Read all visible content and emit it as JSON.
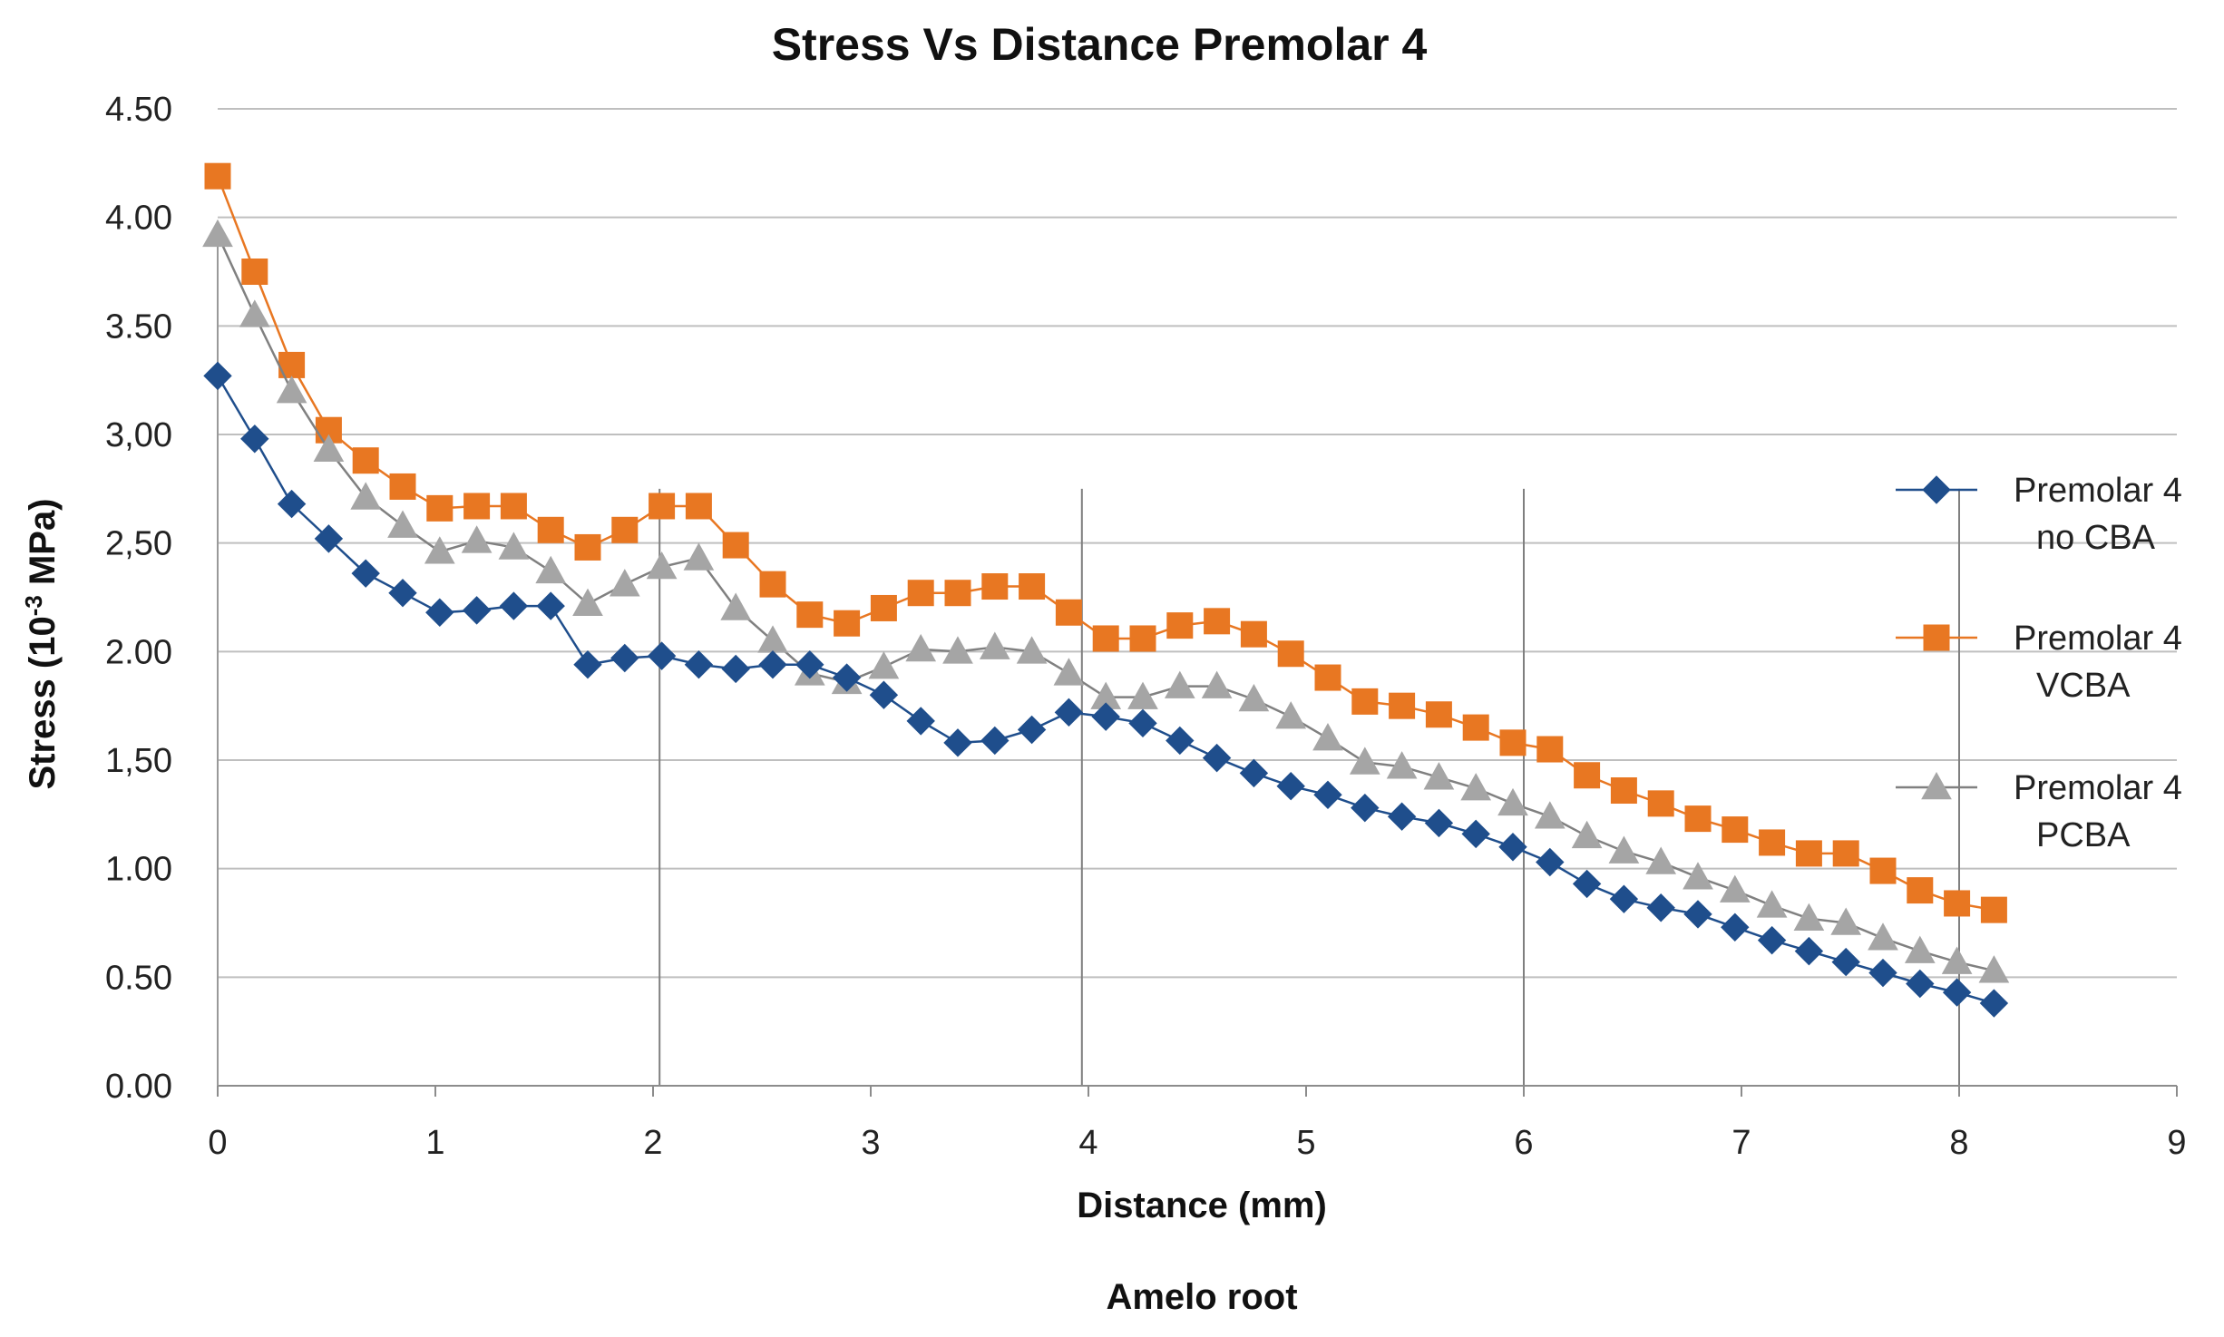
{
  "chart_data": {
    "type": "line",
    "title": "Stress Vs Distance  Premolar 4",
    "xlabel": "Distance (mm)",
    "xlabel2": "Amelo root",
    "ylabel_prefix": "Stress (10",
    "ylabel_sup": "-3",
    "ylabel_suffix": " MPa)",
    "xlim": [
      0,
      9
    ],
    "ylim": [
      0,
      4.5
    ],
    "xticks": [
      "0",
      "1",
      "2",
      "3",
      "4",
      "5",
      "6",
      "7",
      "8",
      "9"
    ],
    "yticks": [
      "0.00",
      "0.50",
      "1.00",
      "1,50",
      "2.00",
      "2,50",
      "3,00",
      "3.50",
      "4.00",
      "4.50"
    ],
    "grid": "horizontal",
    "reference_x": [
      2.03,
      3.97,
      6.0,
      8.0
    ],
    "legend_position": "right",
    "series": [
      {
        "name": "Premolar 4 no CBA",
        "legend_line1": "Premolar 4",
        "legend_line2": "no CBA",
        "color": "#1F4E8C",
        "marker": "diamond",
        "x": [
          0,
          0.17,
          0.34,
          0.51,
          0.68,
          0.85,
          1.02,
          1.19,
          1.36,
          1.53,
          1.7,
          1.87,
          2.04,
          2.21,
          2.38,
          2.55,
          2.72,
          2.89,
          3.06,
          3.23,
          3.4,
          3.57,
          3.74,
          3.91,
          4.08,
          4.25,
          4.42,
          4.59,
          4.76,
          4.93,
          5.1,
          5.27,
          5.44,
          5.61,
          5.78,
          5.95,
          6.12,
          6.29,
          6.46,
          6.63,
          6.8,
          6.97,
          7.14,
          7.31,
          7.48,
          7.65,
          7.82,
          7.99,
          8.16
        ],
        "y": [
          3.27,
          2.98,
          2.68,
          2.52,
          2.36,
          2.27,
          2.18,
          2.19,
          2.21,
          2.21,
          1.94,
          1.97,
          1.98,
          1.94,
          1.92,
          1.94,
          1.94,
          1.88,
          1.8,
          1.68,
          1.58,
          1.59,
          1.64,
          1.72,
          1.7,
          1.67,
          1.59,
          1.51,
          1.44,
          1.38,
          1.34,
          1.28,
          1.24,
          1.21,
          1.16,
          1.1,
          1.03,
          0.93,
          0.86,
          0.82,
          0.79,
          0.73,
          0.67,
          0.62,
          0.57,
          0.52,
          0.47,
          0.43,
          0.38
        ]
      },
      {
        "name": "Premolar 4 VCBA",
        "legend_line1": "Premolar 4",
        "legend_line2": "VCBA",
        "color": "#E87722",
        "marker": "square",
        "x": [
          0,
          0.17,
          0.34,
          0.51,
          0.68,
          0.85,
          1.02,
          1.19,
          1.36,
          1.53,
          1.7,
          1.87,
          2.04,
          2.21,
          2.38,
          2.55,
          2.72,
          2.89,
          3.06,
          3.23,
          3.4,
          3.57,
          3.74,
          3.91,
          4.08,
          4.25,
          4.42,
          4.59,
          4.76,
          4.93,
          5.1,
          5.27,
          5.44,
          5.61,
          5.78,
          5.95,
          6.12,
          6.29,
          6.46,
          6.63,
          6.8,
          6.97,
          7.14,
          7.31,
          7.48,
          7.65,
          7.82,
          7.99,
          8.16
        ],
        "y": [
          4.19,
          3.75,
          3.32,
          3.02,
          2.88,
          2.76,
          2.66,
          2.67,
          2.67,
          2.56,
          2.48,
          2.56,
          2.67,
          2.67,
          2.49,
          2.31,
          2.17,
          2.13,
          2.2,
          2.27,
          2.27,
          2.3,
          2.3,
          2.18,
          2.06,
          2.06,
          2.12,
          2.14,
          2.08,
          1.99,
          1.88,
          1.77,
          1.75,
          1.71,
          1.65,
          1.58,
          1.55,
          1.43,
          1.36,
          1.3,
          1.23,
          1.18,
          1.12,
          1.07,
          1.07,
          0.99,
          0.9,
          0.84,
          0.81
        ]
      },
      {
        "name": "Premolar 4 PCBA",
        "legend_line1": "Premolar 4",
        "legend_line2": "PCBA",
        "color": "#A5A5A5",
        "marker": "triangle",
        "x": [
          0,
          0.17,
          0.34,
          0.51,
          0.68,
          0.85,
          1.02,
          1.19,
          1.36,
          1.53,
          1.7,
          1.87,
          2.04,
          2.21,
          2.38,
          2.55,
          2.72,
          2.89,
          3.06,
          3.23,
          3.4,
          3.57,
          3.74,
          3.91,
          4.08,
          4.25,
          4.42,
          4.59,
          4.76,
          4.93,
          5.1,
          5.27,
          5.44,
          5.61,
          5.78,
          5.95,
          6.12,
          6.29,
          6.46,
          6.63,
          6.8,
          6.97,
          7.14,
          7.31,
          7.48,
          7.65,
          7.82,
          7.99,
          8.16
        ],
        "y": [
          3.92,
          3.55,
          3.2,
          2.93,
          2.71,
          2.58,
          2.46,
          2.51,
          2.48,
          2.37,
          2.22,
          2.31,
          2.39,
          2.43,
          2.2,
          2.05,
          1.9,
          1.86,
          1.93,
          2.01,
          2.0,
          2.02,
          2.0,
          1.9,
          1.79,
          1.79,
          1.84,
          1.84,
          1.78,
          1.7,
          1.6,
          1.49,
          1.47,
          1.42,
          1.37,
          1.3,
          1.24,
          1.15,
          1.08,
          1.03,
          0.96,
          0.9,
          0.83,
          0.77,
          0.75,
          0.68,
          0.62,
          0.57,
          0.53
        ]
      }
    ]
  }
}
